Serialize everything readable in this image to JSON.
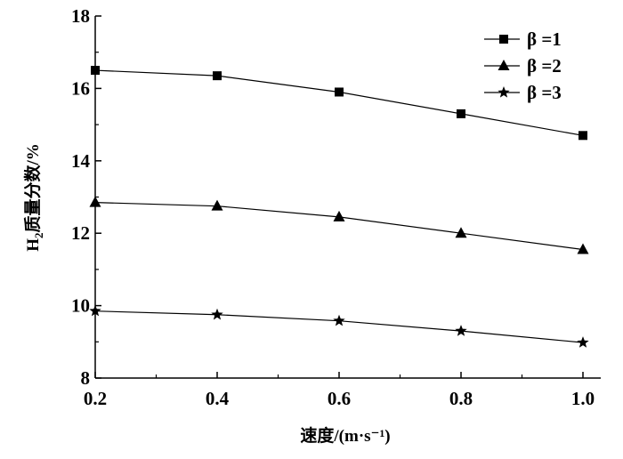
{
  "chart_data": {
    "type": "line",
    "x": [
      0.2,
      0.4,
      0.6,
      0.8,
      1.0
    ],
    "x_tick_labels": [
      "0.2",
      "0.4",
      "0.6",
      "0.8",
      "1.0"
    ],
    "y_tick_labels": [
      "8",
      "10",
      "12",
      "14",
      "16",
      "18"
    ],
    "xlim": [
      0.2,
      1.0
    ],
    "ylim": [
      8,
      18
    ],
    "xlabel": "速度/(m·s⁻¹)",
    "ylabel_main": "H",
    "ylabel_sub": "2",
    "ylabel_rest": "质量分数/%",
    "grid": false,
    "legend_position": "top-right",
    "series": [
      {
        "name": "β =1",
        "marker": "square",
        "values": [
          16.5,
          16.35,
          15.9,
          15.3,
          14.7
        ]
      },
      {
        "name": "β =2",
        "marker": "triangle",
        "values": [
          12.85,
          12.75,
          12.45,
          12.0,
          11.55
        ]
      },
      {
        "name": "β =3",
        "marker": "star",
        "values": [
          9.85,
          9.75,
          9.58,
          9.3,
          8.98
        ]
      }
    ]
  }
}
